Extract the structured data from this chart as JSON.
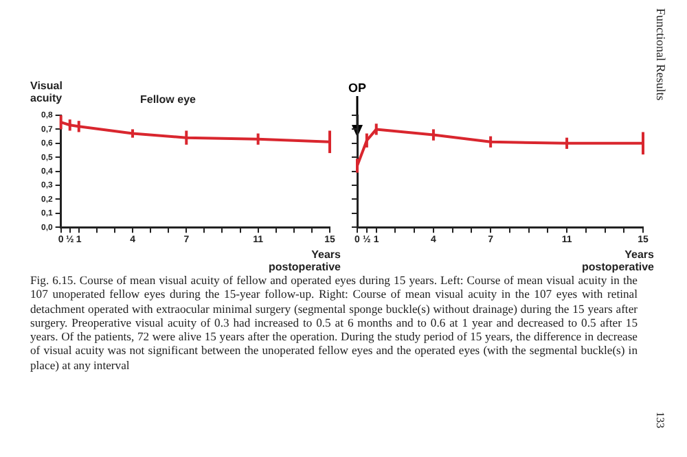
{
  "chart_data": [
    {
      "type": "line",
      "title": "Fellow eye",
      "ylabel": "Visual acuity",
      "xlabel": "Years postoperative",
      "x": [
        0,
        0.5,
        1,
        4,
        7,
        11,
        15
      ],
      "series": [
        {
          "color": "#d9262e",
          "values": [
            0.75,
            0.73,
            0.72,
            0.67,
            0.64,
            0.63,
            0.61
          ],
          "errors": [
            0.05,
            0.04,
            0.04,
            0.03,
            0.05,
            0.04,
            0.08
          ]
        }
      ],
      "xlim": [
        0,
        15
      ],
      "xticks": [
        0,
        {
          "value": 0.5,
          "label": "½"
        },
        1,
        {
          "value": 2,
          "label": null
        },
        {
          "value": 3,
          "label": null
        },
        4,
        {
          "value": 5,
          "label": null
        },
        {
          "value": 6,
          "label": null
        },
        7,
        {
          "value": 8,
          "label": null
        },
        {
          "value": 9,
          "label": null
        },
        {
          "value": 10,
          "label": null
        },
        11,
        {
          "value": 12,
          "label": null
        },
        {
          "value": 13,
          "label": null
        },
        {
          "value": 14,
          "label": null
        },
        15
      ],
      "ylim": [
        0,
        0.8
      ],
      "yticks": [
        {
          "value": 0,
          "label": "0,0"
        },
        {
          "value": 0.1,
          "label": "0,1"
        },
        {
          "value": 0.2,
          "label": "0,2"
        },
        {
          "value": 0.3,
          "label": "0,3"
        },
        {
          "value": 0.4,
          "label": "0,4"
        },
        {
          "value": 0.5,
          "label": "0,5"
        },
        {
          "value": 0.6,
          "label": "0,6"
        },
        {
          "value": 0.7,
          "label": "0,7"
        },
        {
          "value": 0.8,
          "label": "0,8"
        }
      ],
      "grid": false,
      "legend": false,
      "marker": "none",
      "annotations": [
        "Fig. 6.15. Course of mean visual acuity of fellow and operated eyes during 15 years. Left: Course of mean visual acuity in the 107 unoperated fellow eyes during the 15-year follow-up. Right: Course of mean visual acuity in the 107 eyes with retinal detachment operated with extraocular minimal surgery (segmental sponge buckle(s) without drainage) during the 15 years after surgery. Preoperative visual acuity of 0.3 had increased to 0.5 at 6 months and to 0.6 at 1 year and decreased to 0.5 after 15 years. Of the patients, 72 were alive 15 years after the operation. During the study period of 15 years, the difference in decrease of visual acuity was not significant between the unoperated fellow eyes and the operated eyes (with the segmental buckle(s) in place) at any interval",
        "Functional Results",
        "133"
      ]
    },
    {
      "type": "line",
      "xlabel": "Years postoperative",
      "x": [
        0,
        0.5,
        1,
        4,
        7,
        11,
        15
      ],
      "series": [
        {
          "color": "#d9262e",
          "values": [
            0.44,
            0.62,
            0.7,
            0.66,
            0.61,
            0.6,
            0.6
          ],
          "errors": [
            0.05,
            0.05,
            0.04,
            0.04,
            0.04,
            0.04,
            0.08
          ]
        }
      ],
      "xlim": [
        0,
        15
      ],
      "xticks": [
        0,
        {
          "value": 0.5,
          "label": "½"
        },
        1,
        {
          "value": 2,
          "label": null
        },
        {
          "value": 3,
          "label": null
        },
        4,
        {
          "value": 5,
          "label": null
        },
        {
          "value": 6,
          "label": null
        },
        7,
        {
          "value": 8,
          "label": null
        },
        {
          "value": 9,
          "label": null
        },
        {
          "value": 10,
          "label": null
        },
        11,
        {
          "value": 12,
          "label": null
        },
        {
          "value": 13,
          "label": null
        },
        {
          "value": 14,
          "label": null
        },
        15
      ],
      "ylim": [
        0,
        0.8
      ],
      "yticks": [
        {
          "value": 0,
          "label": null
        },
        {
          "value": 0.1,
          "label": null
        },
        {
          "value": 0.2,
          "label": null
        },
        {
          "value": 0.3,
          "label": null
        },
        {
          "value": 0.4,
          "label": null
        },
        {
          "value": 0.5,
          "label": null
        },
        {
          "value": 0.6,
          "label": null
        },
        {
          "value": 0.7,
          "label": null
        },
        {
          "value": 0.8,
          "label": null
        }
      ],
      "tick_labels": "x",
      "grid": false,
      "legend": false,
      "marker": "none",
      "annotations": [
        "OP"
      ]
    }
  ]
}
